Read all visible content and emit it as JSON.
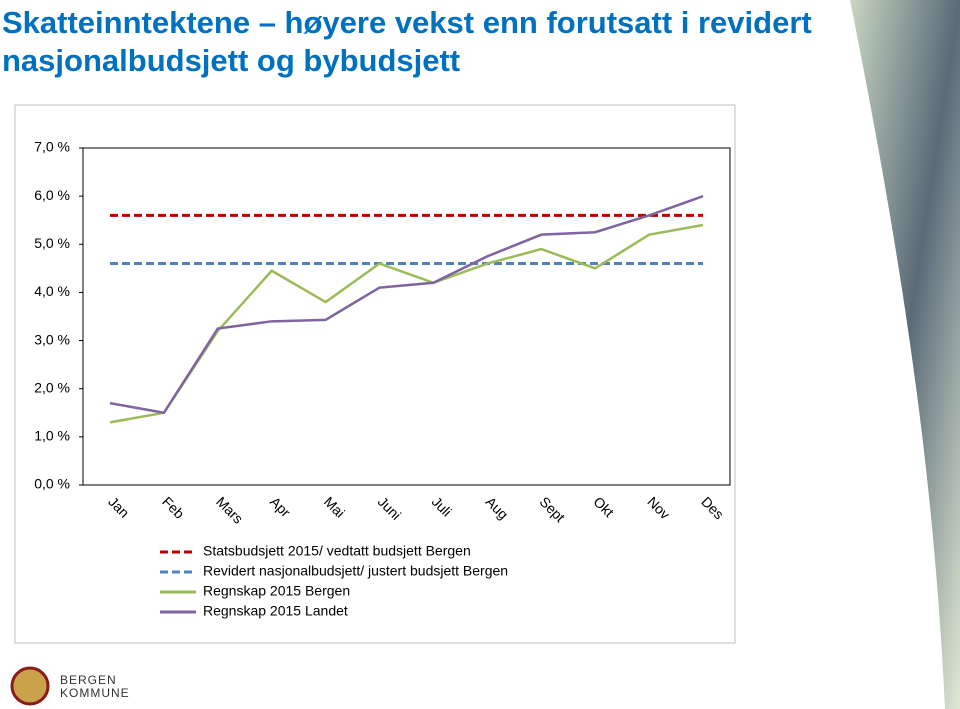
{
  "chart_data": {
    "type": "line",
    "title": "Skatteinntektene – høyere vekst enn forutsatt i revidert nasjonalbudsjett og bybudsjett",
    "categories": [
      "Jan",
      "Feb",
      "Mars",
      "Apr",
      "Mai",
      "Juni",
      "Juli",
      "Aug",
      "Sept",
      "Okt",
      "Nov",
      "Des"
    ],
    "series": [
      {
        "name": "Statsbudsjett 2015/ vedtatt budsjett Bergen",
        "color": "#c00000",
        "dashed": true,
        "values": [
          5.6,
          5.6,
          5.6,
          5.6,
          5.6,
          5.6,
          5.6,
          5.6,
          5.6,
          5.6,
          5.6,
          5.6
        ]
      },
      {
        "name": "Revidert nasjonalbudsjett/ justert budsjett Bergen",
        "color": "#4f81bd",
        "dashed": true,
        "values": [
          4.6,
          4.6,
          4.6,
          4.6,
          4.6,
          4.6,
          4.6,
          4.6,
          4.6,
          4.6,
          4.6,
          4.6
        ]
      },
      {
        "name": "Regnskap 2015  Bergen",
        "color": "#9bbb59",
        "dashed": false,
        "values": [
          1.3,
          1.5,
          3.2,
          4.45,
          3.8,
          4.6,
          4.2,
          4.6,
          4.9,
          4.5,
          5.2,
          5.4
        ]
      },
      {
        "name": "Regnskap 2015  Landet",
        "color": "#8064a2",
        "dashed": false,
        "values": [
          1.7,
          1.5,
          3.25,
          3.4,
          3.43,
          4.1,
          4.2,
          4.75,
          5.2,
          5.25,
          5.6,
          6.0
        ]
      }
    ],
    "ylim": [
      0,
      7
    ],
    "yticks": [
      {
        "value": 0,
        "label": "0,0 %"
      },
      {
        "value": 1,
        "label": "1,0 %"
      },
      {
        "value": 2,
        "label": "2,0 %"
      },
      {
        "value": 3,
        "label": "3,0 %"
      },
      {
        "value": 4,
        "label": "4,0 %"
      },
      {
        "value": 5,
        "label": "5,0 %"
      },
      {
        "value": 6,
        "label": "6,0 %"
      },
      {
        "value": 7,
        "label": "7,0 %"
      }
    ],
    "grid": false
  },
  "logo": {
    "line1": "BERGEN",
    "line2": "KOMMUNE"
  }
}
